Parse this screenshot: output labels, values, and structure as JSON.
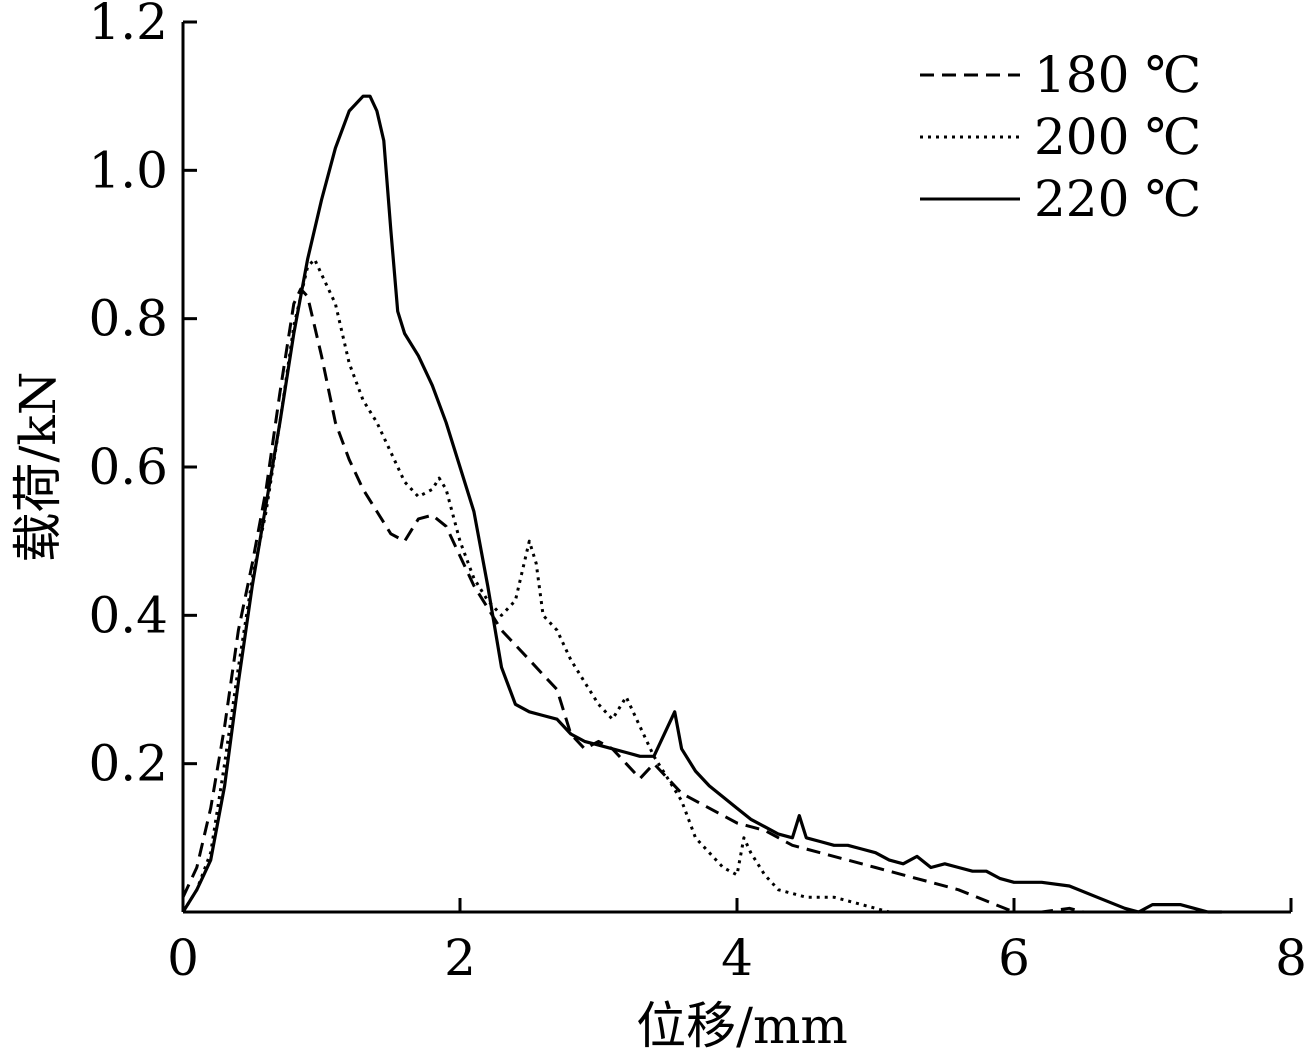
{
  "chart_data": {
    "type": "line",
    "title": "",
    "xlabel": "位移/mm",
    "ylabel": "载荷/kN",
    "xlim": [
      0,
      8
    ],
    "ylim": [
      0,
      1.2
    ],
    "x_ticks": [
      "0",
      "2",
      "4",
      "6",
      "8"
    ],
    "y_ticks": [
      "0.2",
      "0.4",
      "0.6",
      "0.8",
      "1.0",
      "1.2"
    ],
    "legend_position": "top-right",
    "grid": false,
    "series": [
      {
        "name": "180 ℃",
        "style": "dashed",
        "points": [
          [
            0,
            0.02
          ],
          [
            0.1,
            0.06
          ],
          [
            0.2,
            0.14
          ],
          [
            0.3,
            0.25
          ],
          [
            0.4,
            0.38
          ],
          [
            0.5,
            0.47
          ],
          [
            0.6,
            0.57
          ],
          [
            0.7,
            0.7
          ],
          [
            0.8,
            0.82
          ],
          [
            0.85,
            0.84
          ],
          [
            0.9,
            0.83
          ],
          [
            1.0,
            0.75
          ],
          [
            1.1,
            0.66
          ],
          [
            1.2,
            0.61
          ],
          [
            1.3,
            0.57
          ],
          [
            1.4,
            0.54
          ],
          [
            1.5,
            0.51
          ],
          [
            1.6,
            0.5
          ],
          [
            1.7,
            0.53
          ],
          [
            1.8,
            0.535
          ],
          [
            1.9,
            0.52
          ],
          [
            2.0,
            0.48
          ],
          [
            2.1,
            0.44
          ],
          [
            2.2,
            0.41
          ],
          [
            2.3,
            0.38
          ],
          [
            2.4,
            0.36
          ],
          [
            2.5,
            0.34
          ],
          [
            2.6,
            0.32
          ],
          [
            2.7,
            0.3
          ],
          [
            2.8,
            0.24
          ],
          [
            2.9,
            0.22
          ],
          [
            3.0,
            0.23
          ],
          [
            3.1,
            0.22
          ],
          [
            3.2,
            0.2
          ],
          [
            3.3,
            0.18
          ],
          [
            3.4,
            0.2
          ],
          [
            3.5,
            0.18
          ],
          [
            3.6,
            0.16
          ],
          [
            3.8,
            0.14
          ],
          [
            4.0,
            0.12
          ],
          [
            4.2,
            0.11
          ],
          [
            4.4,
            0.09
          ],
          [
            4.6,
            0.08
          ],
          [
            4.8,
            0.07
          ],
          [
            5.0,
            0.06
          ],
          [
            5.2,
            0.05
          ],
          [
            5.4,
            0.04
          ],
          [
            5.6,
            0.03
          ],
          [
            5.8,
            0.015
          ],
          [
            6.0,
            0.0
          ],
          [
            6.2,
            0.0
          ],
          [
            6.4,
            0.005
          ],
          [
            6.5,
            0.0
          ]
        ]
      },
      {
        "name": "200 ℃",
        "style": "dotted",
        "points": [
          [
            0,
            0.0
          ],
          [
            0.1,
            0.03
          ],
          [
            0.2,
            0.08
          ],
          [
            0.3,
            0.2
          ],
          [
            0.4,
            0.33
          ],
          [
            0.5,
            0.45
          ],
          [
            0.6,
            0.54
          ],
          [
            0.7,
            0.66
          ],
          [
            0.8,
            0.79
          ],
          [
            0.9,
            0.87
          ],
          [
            0.95,
            0.88
          ],
          [
            1.0,
            0.86
          ],
          [
            1.1,
            0.82
          ],
          [
            1.2,
            0.74
          ],
          [
            1.3,
            0.69
          ],
          [
            1.4,
            0.66
          ],
          [
            1.5,
            0.62
          ],
          [
            1.6,
            0.58
          ],
          [
            1.7,
            0.56
          ],
          [
            1.8,
            0.57
          ],
          [
            1.85,
            0.585
          ],
          [
            1.9,
            0.57
          ],
          [
            2.0,
            0.5
          ],
          [
            2.1,
            0.45
          ],
          [
            2.2,
            0.42
          ],
          [
            2.3,
            0.4
          ],
          [
            2.4,
            0.42
          ],
          [
            2.5,
            0.5
          ],
          [
            2.55,
            0.47
          ],
          [
            2.6,
            0.4
          ],
          [
            2.7,
            0.38
          ],
          [
            2.8,
            0.34
          ],
          [
            2.9,
            0.31
          ],
          [
            3.0,
            0.28
          ],
          [
            3.1,
            0.26
          ],
          [
            3.2,
            0.29
          ],
          [
            3.3,
            0.25
          ],
          [
            3.4,
            0.21
          ],
          [
            3.5,
            0.18
          ],
          [
            3.6,
            0.15
          ],
          [
            3.7,
            0.1
          ],
          [
            3.8,
            0.08
          ],
          [
            3.9,
            0.06
          ],
          [
            4.0,
            0.05
          ],
          [
            4.05,
            0.1
          ],
          [
            4.1,
            0.08
          ],
          [
            4.2,
            0.05
          ],
          [
            4.3,
            0.03
          ],
          [
            4.5,
            0.02
          ],
          [
            4.7,
            0.02
          ],
          [
            4.9,
            0.01
          ],
          [
            5.1,
            0.0
          ]
        ]
      },
      {
        "name": "220 ℃",
        "style": "solid",
        "points": [
          [
            0,
            0.0
          ],
          [
            0.1,
            0.03
          ],
          [
            0.15,
            0.05
          ],
          [
            0.2,
            0.07
          ],
          [
            0.3,
            0.17
          ],
          [
            0.4,
            0.31
          ],
          [
            0.5,
            0.44
          ],
          [
            0.6,
            0.55
          ],
          [
            0.7,
            0.66
          ],
          [
            0.8,
            0.78
          ],
          [
            0.9,
            0.88
          ],
          [
            1.0,
            0.96
          ],
          [
            1.1,
            1.03
          ],
          [
            1.2,
            1.08
          ],
          [
            1.3,
            1.1
          ],
          [
            1.35,
            1.1
          ],
          [
            1.4,
            1.08
          ],
          [
            1.45,
            1.04
          ],
          [
            1.5,
            0.92
          ],
          [
            1.55,
            0.81
          ],
          [
            1.6,
            0.78
          ],
          [
            1.7,
            0.75
          ],
          [
            1.8,
            0.71
          ],
          [
            1.9,
            0.66
          ],
          [
            2.0,
            0.6
          ],
          [
            2.1,
            0.54
          ],
          [
            2.2,
            0.44
          ],
          [
            2.3,
            0.33
          ],
          [
            2.4,
            0.28
          ],
          [
            2.5,
            0.27
          ],
          [
            2.6,
            0.265
          ],
          [
            2.7,
            0.26
          ],
          [
            2.8,
            0.24
          ],
          [
            2.9,
            0.23
          ],
          [
            3.0,
            0.225
          ],
          [
            3.1,
            0.22
          ],
          [
            3.2,
            0.215
          ],
          [
            3.3,
            0.21
          ],
          [
            3.4,
            0.21
          ],
          [
            3.5,
            0.25
          ],
          [
            3.55,
            0.27
          ],
          [
            3.6,
            0.22
          ],
          [
            3.7,
            0.19
          ],
          [
            3.8,
            0.17
          ],
          [
            3.9,
            0.155
          ],
          [
            4.0,
            0.14
          ],
          [
            4.1,
            0.125
          ],
          [
            4.2,
            0.115
          ],
          [
            4.3,
            0.105
          ],
          [
            4.4,
            0.1
          ],
          [
            4.45,
            0.13
          ],
          [
            4.5,
            0.1
          ],
          [
            4.6,
            0.095
          ],
          [
            4.7,
            0.09
          ],
          [
            4.8,
            0.09
          ],
          [
            4.9,
            0.085
          ],
          [
            5.0,
            0.08
          ],
          [
            5.1,
            0.07
          ],
          [
            5.2,
            0.065
          ],
          [
            5.3,
            0.075
          ],
          [
            5.4,
            0.06
          ],
          [
            5.5,
            0.065
          ],
          [
            5.6,
            0.06
          ],
          [
            5.7,
            0.055
          ],
          [
            5.8,
            0.055
          ],
          [
            5.9,
            0.045
          ],
          [
            6.0,
            0.04
          ],
          [
            6.2,
            0.04
          ],
          [
            6.4,
            0.035
          ],
          [
            6.6,
            0.02
          ],
          [
            6.8,
            0.005
          ],
          [
            6.9,
            0.0
          ],
          [
            7.0,
            0.01
          ],
          [
            7.2,
            0.01
          ],
          [
            7.4,
            0.0
          ],
          [
            7.5,
            0.0
          ]
        ]
      }
    ]
  },
  "legend": {
    "items": [
      {
        "label": "180 ℃",
        "style": "dashed"
      },
      {
        "label": "200 ℃",
        "style": "dotted"
      },
      {
        "label": "220 ℃",
        "style": "solid"
      }
    ]
  },
  "colors": {
    "line": "#000000",
    "background": "#ffffff"
  }
}
